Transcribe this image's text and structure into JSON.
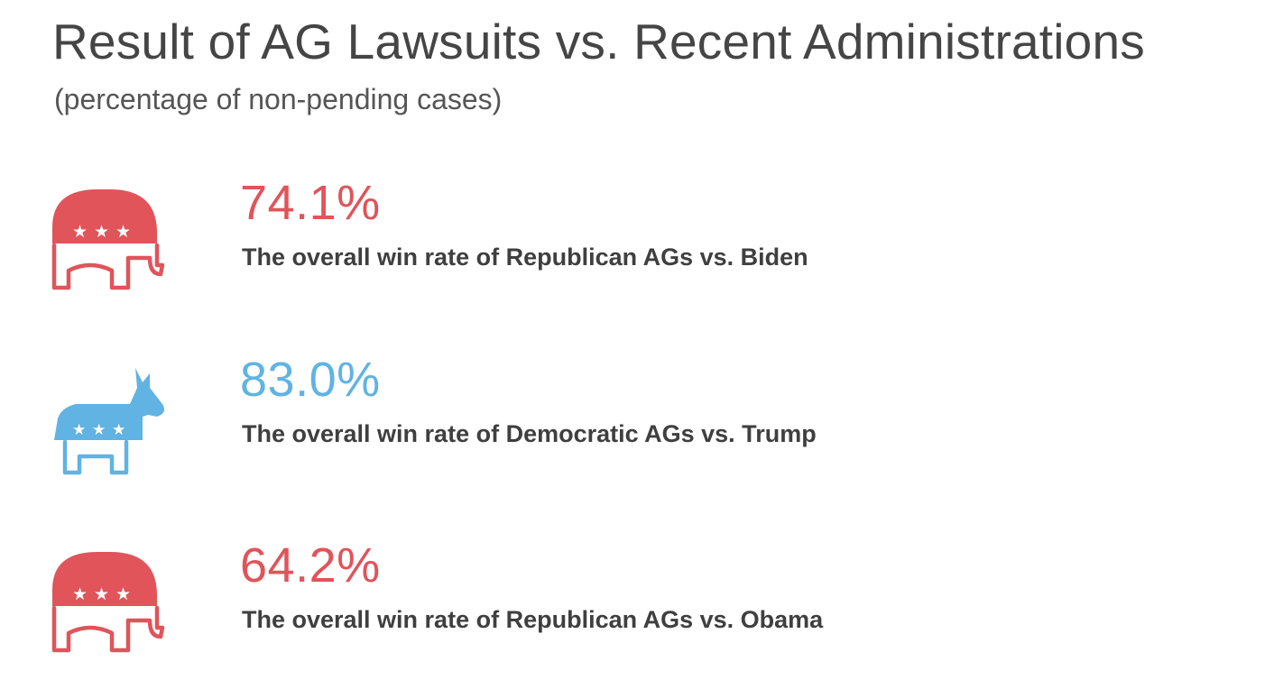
{
  "title": "Result of AG Lawsuits vs. Recent Administrations",
  "subtitle": "(percentage of non-pending cases)",
  "colors": {
    "republican": "#e0545a",
    "democrat": "#60b3e3",
    "text": "#444444"
  },
  "stats": [
    {
      "value": "74.1%",
      "label": "The overall win rate of Republican AGs vs. Biden",
      "icon": "republican-elephant-icon",
      "party": "republican"
    },
    {
      "value": "83.0%",
      "label": "The overall win rate of Democratic AGs vs. Trump",
      "icon": "democrat-donkey-icon",
      "party": "democrat"
    },
    {
      "value": "64.2%",
      "label": "The overall win rate of Republican AGs vs. Obama",
      "icon": "republican-elephant-icon",
      "party": "republican"
    }
  ]
}
